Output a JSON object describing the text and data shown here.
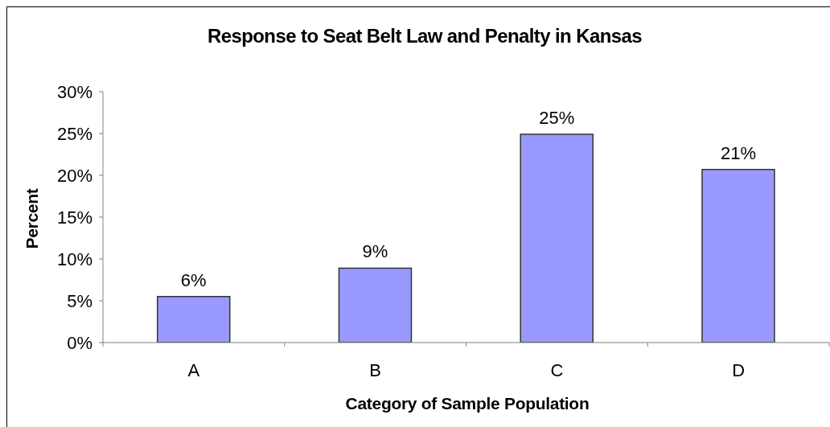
{
  "chart_data": {
    "type": "bar",
    "title": "Response to Seat Belt Law and Penalty in Kansas",
    "xlabel": "Category of Sample Population",
    "ylabel": "Percent",
    "categories": [
      "A",
      "B",
      "C",
      "D"
    ],
    "values": [
      5.5,
      8.9,
      24.9,
      20.7
    ],
    "value_labels": [
      "6%",
      "9%",
      "25%",
      "21%"
    ],
    "color": "#9999ff",
    "ylim": [
      0,
      30
    ],
    "yticks": [
      {
        "value": 0,
        "label": "0%"
      },
      {
        "value": 5,
        "label": "5%"
      },
      {
        "value": 10,
        "label": "10%"
      },
      {
        "value": 15,
        "label": "15%"
      },
      {
        "value": 20,
        "label": "20%"
      },
      {
        "value": 25,
        "label": "25%"
      },
      {
        "value": 30,
        "label": "30%"
      }
    ],
    "grid": false,
    "legend": false
  }
}
